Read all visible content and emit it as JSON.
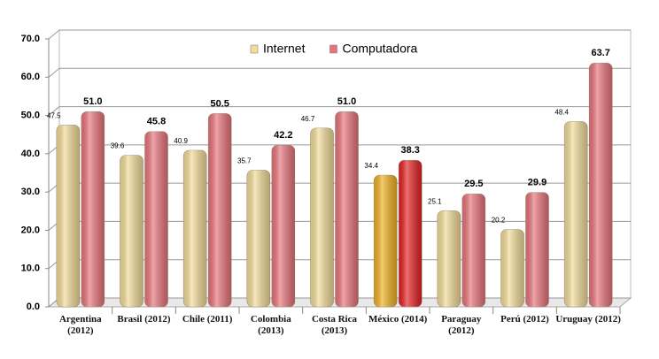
{
  "chart_data": {
    "type": "bar",
    "categories": [
      "Argentina (2012)",
      "Brasil (2012)",
      "Chile (2011)",
      "Colombia (2013)",
      "Costa Rica (2013)",
      "México (2014)",
      "Paraguay (2012)",
      "Perú (2012)",
      "Uruguay (2012)"
    ],
    "series": [
      {
        "name": "Internet",
        "color": "#f3dc98",
        "colors": [
          "#f3dc98",
          "#f3dc98",
          "#f3dc98",
          "#f3dc98",
          "#f3dc98",
          "#f0b020",
          "#f3dc98",
          "#f3dc98",
          "#f3dc98"
        ],
        "values": [
          47.5,
          39.6,
          40.9,
          35.7,
          46.7,
          34.4,
          25.1,
          20.2,
          48.4
        ]
      },
      {
        "name": "Computadora",
        "color": "#e8737a",
        "colors": [
          "#e8737a",
          "#e8737a",
          "#e8737a",
          "#e8737a",
          "#e8737a",
          "#e52020",
          "#e8737a",
          "#e8737a",
          "#e8737a"
        ],
        "values": [
          51,
          45.8,
          50.5,
          42.2,
          51,
          38.3,
          29.5,
          29.9,
          63.7
        ],
        "value_labels": [
          "51.0",
          "45.8",
          "50.5",
          "42.2",
          "51.0",
          "38.3",
          "29.5",
          "29.9",
          "63.7"
        ]
      }
    ],
    "ylim": [
      0,
      70
    ],
    "yticks": [
      {
        "value": 0,
        "label": "0.0"
      },
      {
        "value": 10,
        "label": "10.0"
      },
      {
        "value": 20,
        "label": "20.0"
      },
      {
        "value": 30,
        "label": "30.0"
      },
      {
        "value": 40,
        "label": "40.0"
      },
      {
        "value": 50,
        "label": "50.0"
      },
      {
        "value": 60,
        "label": "60.0"
      },
      {
        "value": 70,
        "label": "70.0"
      }
    ],
    "grid": true,
    "legend": "top"
  }
}
